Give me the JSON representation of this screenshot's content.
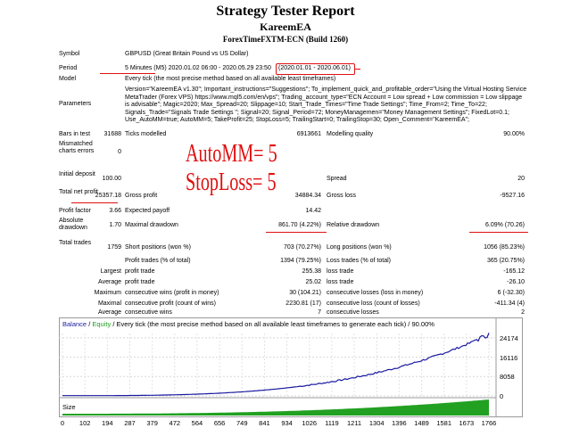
{
  "header": {
    "title": "Strategy Tester Report",
    "expert": "KareemEA",
    "server_name": "ForexTimeFXTM-ECN",
    "build": "(Build 1260)"
  },
  "rows": {
    "symbol": {
      "label": "Symbol",
      "value": "GBPUSD (Great Britain Pound vs US Dollar)"
    },
    "period": {
      "label": "Period",
      "value": "5 Minutes (M5) 2020.01.02 06:00 - 2020.05.29 23:50",
      "range": "(2020.01.01 - 2020.06.01)"
    },
    "model": {
      "label": "Model",
      "value": "Every tick (the most precise method based on all available least timeframes)"
    },
    "parameters": {
      "label": "Parameters",
      "value": "Version=\"KareemEA v1.30\"; Important_instructions=\"Suggestions\"; To_implement_quick_and_profitable_order=\"Using the Virtual Hosting Service MetaTrader (Forex VPS) https://www.mql5.com/en/vps\"; Trading_account_type=\"ECN Account = Low spread + Low commission = Low slippage is advisable\"; Magic=2020; Max_Spread=20; Slippage=10; Start_Trade_Times=\"Time Trade Settings\"; Time_From=2; Time_To=22; Signals_Trade=\"Signals Trade Settings \"; Signal=20; Signal_Period=72; MoneyManagemen=\"Money Management Settings\"; FixedLot=0.1; Use_AutoMM=true; AutoMM=5; TakeProfit=25; StopLoss=5; TrailingStart=0; TrailingStop=30; Open_Comment=\"KareemEA\";"
    },
    "bars": {
      "label": "Bars in test",
      "value": "31688",
      "ticks_label": "Ticks modelled",
      "ticks": "6913661",
      "quality_label": "Modelling quality",
      "quality": "90.00%"
    },
    "mismatched": {
      "label": "Mismatched charts errors",
      "value": "0"
    },
    "initial_deposit": {
      "label": "Initial deposit",
      "value": "100.00",
      "spread_label": "Spread",
      "spread": "20"
    },
    "net_profit": {
      "label": "Total net profit",
      "value": "25357.18",
      "gross_profit_label": "Gross profit",
      "gross_profit": "34884.34",
      "gross_loss_label": "Gross loss",
      "gross_loss": "-9527.16"
    },
    "profit_factor": {
      "label": "Profit factor",
      "value": "3.66",
      "payoff_label": "Expected payoff",
      "payoff": "14.42"
    },
    "absolute_dd": {
      "label": "Absolute drawdown",
      "value": "1.70",
      "maximal_label": "Maximal drawdown",
      "maximal": "861.70 (4.22%)",
      "relative_label": "Relative drawdown",
      "relative": "6.09% (70.26)"
    },
    "total_trades": {
      "label": "Total trades",
      "value": "1759",
      "short_label": "Short positions (won %)",
      "short": "703 (70.27%)",
      "long_label": "Long positions (won %)",
      "long": "1056 (85.23%)"
    },
    "profit_trades": {
      "label": "Profit trades (% of total)",
      "value": "1394 (79.25%)",
      "loss_label": "Loss trades (% of total)",
      "loss": "365 (20.75%)"
    },
    "largest": {
      "label": "Largest",
      "profit_label": "profit trade",
      "profit": "255.38",
      "loss_label": "loss trade",
      "loss": "-165.12"
    },
    "average": {
      "label": "Average",
      "profit_label": "profit trade",
      "profit": "25.02",
      "loss_label": "loss trade",
      "loss": "-26.10"
    },
    "maximum": {
      "label": "Maximum",
      "wins_label": "consecutive wins (profit in money)",
      "wins": "30 (104.21)",
      "losses_label": "consecutive losses (loss in money)",
      "losses": "6 (-32.30)"
    },
    "maximal": {
      "label": "Maximal",
      "profit_label": "consecutive profit (count of wins)",
      "profit": "2230.81 (17)",
      "loss_label": "consecutive loss (count of losses)",
      "loss": "-411.34 (4)"
    },
    "average2": {
      "label": "Average",
      "wins_label": "consecutive wins",
      "wins": "7",
      "losses_label": "consecutive losses",
      "losses": "2"
    }
  },
  "annotations": {
    "automm": "AutoMM= 5",
    "stoploss": "StopLoss= 5",
    "color": "#e01010"
  },
  "chart": {
    "legend_balance": "Balance",
    "legend_sep": " / ",
    "legend_equity": "Equity",
    "legend_rest": " / Every tick (the most precise method based on all available least timeframes to generate each tick) / 90.00%",
    "size_label": "Size",
    "balance_color": "#1a1aa0",
    "volume_color": "#22a022",
    "y_ticks": [
      "24174",
      "16116",
      "8058",
      "0"
    ],
    "x_ticks": [
      "0",
      "102",
      "194",
      "287",
      "379",
      "472",
      "564",
      "656",
      "749",
      "841",
      "934",
      "1026",
      "1119",
      "1211",
      "1304",
      "1396",
      "1489",
      "1581",
      "1673",
      "1766"
    ]
  }
}
